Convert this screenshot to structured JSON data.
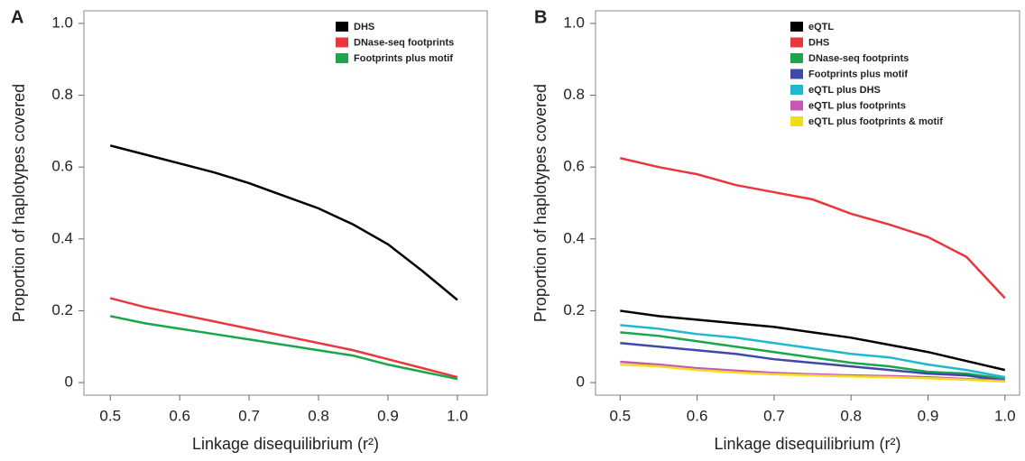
{
  "chart_data": [
    {
      "type": "line",
      "panel_label": "A",
      "x_label": "Linkage disequilibrium (r²)",
      "y_label": "Proportion of haplotypes covered",
      "x": [
        0.5,
        0.55,
        0.6,
        0.65,
        0.7,
        0.75,
        0.8,
        0.85,
        0.9,
        0.95,
        1.0
      ],
      "xlim": [
        0.462,
        1.043
      ],
      "ylim": [
        -0.035,
        1.035
      ],
      "xticks": [
        0.5,
        0.6,
        0.7,
        0.8,
        0.9,
        {
          "value": 1.0,
          "label": "1.0"
        }
      ],
      "yticks": [
        0,
        0.2,
        0.4,
        0.6,
        0.8,
        {
          "value": 1.0,
          "label": "1.0"
        }
      ],
      "legend": "upper right",
      "series": [
        {
          "name": "DHS",
          "color": "#000000",
          "values": [
            0.66,
            0.635,
            0.61,
            0.585,
            0.555,
            0.52,
            0.485,
            0.44,
            0.385,
            0.31,
            0.23
          ]
        },
        {
          "name": "DNase-seq footprints",
          "color": "#e8383d",
          "values": [
            0.235,
            0.21,
            0.19,
            0.17,
            0.15,
            0.13,
            0.11,
            0.09,
            0.065,
            0.04,
            0.015
          ]
        },
        {
          "name": "Footprints plus motif",
          "color": "#1aa64a",
          "values": [
            0.185,
            0.165,
            0.15,
            0.135,
            0.12,
            0.105,
            0.09,
            0.075,
            0.05,
            0.03,
            0.01
          ]
        }
      ]
    },
    {
      "type": "line",
      "panel_label": "B",
      "x_label": "Linkage disequilibrium (r²)",
      "y_label": "Proportion of haplotypes covered",
      "x": [
        0.5,
        0.55,
        0.6,
        0.65,
        0.7,
        0.75,
        0.8,
        0.85,
        0.9,
        0.95,
        1.0
      ],
      "xlim": [
        0.468,
        1.019
      ],
      "ylim": [
        -0.035,
        1.035
      ],
      "xticks": [
        0.5,
        0.6,
        0.7,
        0.8,
        0.9,
        {
          "value": 1.0,
          "label": "1.0"
        }
      ],
      "yticks": [
        0,
        0.2,
        0.4,
        0.6,
        0.8,
        {
          "value": 1.0,
          "label": "1.0"
        }
      ],
      "legend": "upper right",
      "series": [
        {
          "name": "eQTL",
          "color": "#000000",
          "values": [
            0.2,
            0.185,
            0.175,
            0.165,
            0.155,
            0.14,
            0.125,
            0.105,
            0.085,
            0.06,
            0.035
          ]
        },
        {
          "name": "DHS",
          "color": "#e8383d",
          "values": [
            0.625,
            0.6,
            0.58,
            0.55,
            0.53,
            0.51,
            0.47,
            0.44,
            0.405,
            0.35,
            0.235
          ]
        },
        {
          "name": "DNase-seq footprints",
          "color": "#1aa64a",
          "values": [
            0.14,
            0.13,
            0.115,
            0.1,
            0.085,
            0.07,
            0.055,
            0.045,
            0.03,
            0.025,
            0.01
          ]
        },
        {
          "name": "Footprints plus motif",
          "color": "#3f4aa8",
          "values": [
            0.11,
            0.1,
            0.09,
            0.08,
            0.065,
            0.055,
            0.045,
            0.035,
            0.025,
            0.02,
            0.005
          ]
        },
        {
          "name": "eQTL plus DHS",
          "color": "#1fb8d0",
          "values": [
            0.16,
            0.15,
            0.135,
            0.125,
            0.11,
            0.095,
            0.08,
            0.07,
            0.05,
            0.035,
            0.015
          ]
        },
        {
          "name": "eQTL plus footprints",
          "color": "#c458b4",
          "values": [
            0.058,
            0.05,
            0.04,
            0.033,
            0.027,
            0.023,
            0.02,
            0.018,
            0.015,
            0.01,
            0.005
          ]
        },
        {
          "name": "eQTL plus footprints & motif",
          "color": "#f2dc1c",
          "values": [
            0.05,
            0.045,
            0.035,
            0.028,
            0.023,
            0.02,
            0.017,
            0.015,
            0.012,
            0.008,
            0.003
          ]
        }
      ]
    }
  ]
}
